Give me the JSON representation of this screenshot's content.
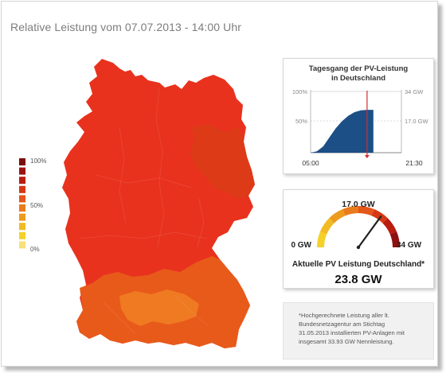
{
  "page": {
    "title": "Relative Leistung vom 07.07.2013 - 14:00 Uhr"
  },
  "legend": {
    "labels": [
      "100%",
      "50%",
      "0%"
    ],
    "colors": [
      "#7a0d0d",
      "#9b1212",
      "#b81d10",
      "#d53813",
      "#e5561a",
      "#ea7b1c",
      "#ee9a1d",
      "#f2bb24",
      "#f5d12a",
      "#f9e07a"
    ]
  },
  "map": {
    "colors": {
      "main": "#e8321e",
      "east_darker": "#dd3a18",
      "south_orange": "#e85a1a",
      "south_light": "#ef7a22"
    }
  },
  "daily_chart": {
    "title_line1": "Tagesgang der PV-Leistung",
    "title_line2": "in Deutschland",
    "y_left_top": "100%",
    "y_left_mid": "50%",
    "y_right_top": "34 GW",
    "y_right_mid": "17.0 GW",
    "x_start": "05:00",
    "x_end": "21:30",
    "fill_color": "#1b4f86",
    "marker_color": "#d52b2b",
    "chart_data": {
      "type": "area",
      "title": "Tagesgang der PV-Leistung in Deutschland",
      "x_range": [
        "05:00",
        "21:30"
      ],
      "ylim": [
        0,
        34
      ],
      "y_unit": "GW",
      "x": [
        "05:00",
        "06:00",
        "07:00",
        "08:00",
        "09:00",
        "10:00",
        "11:00",
        "12:00",
        "13:00",
        "14:00",
        "15:00"
      ],
      "values": [
        0,
        0.8,
        3.5,
        8.5,
        13.5,
        17.5,
        20.5,
        22.5,
        23.5,
        23.8,
        23.8
      ],
      "current_time": "14:00"
    }
  },
  "gauge": {
    "min_label": "0 GW",
    "mid_label": "17.0 GW",
    "max_label": "34 GW",
    "caption": "Aktuelle PV Leistung Deutschland*",
    "value_label": "23.8 GW",
    "value": 23.8,
    "max": 34,
    "arc_colors": [
      "#f5d12a",
      "#f2bb24",
      "#ee9a1d",
      "#ea7b1c",
      "#e5561a",
      "#d53813",
      "#b81d10",
      "#8f1010"
    ]
  },
  "note": {
    "lines": [
      "*Hochgerechnete Leistung aller lt.",
      "Bundesnetzagentur am Stichtag",
      "31.05.2013 installierten PV-Anlagen mit",
      "insgesamt 33.93 GW Nennleistung."
    ]
  }
}
